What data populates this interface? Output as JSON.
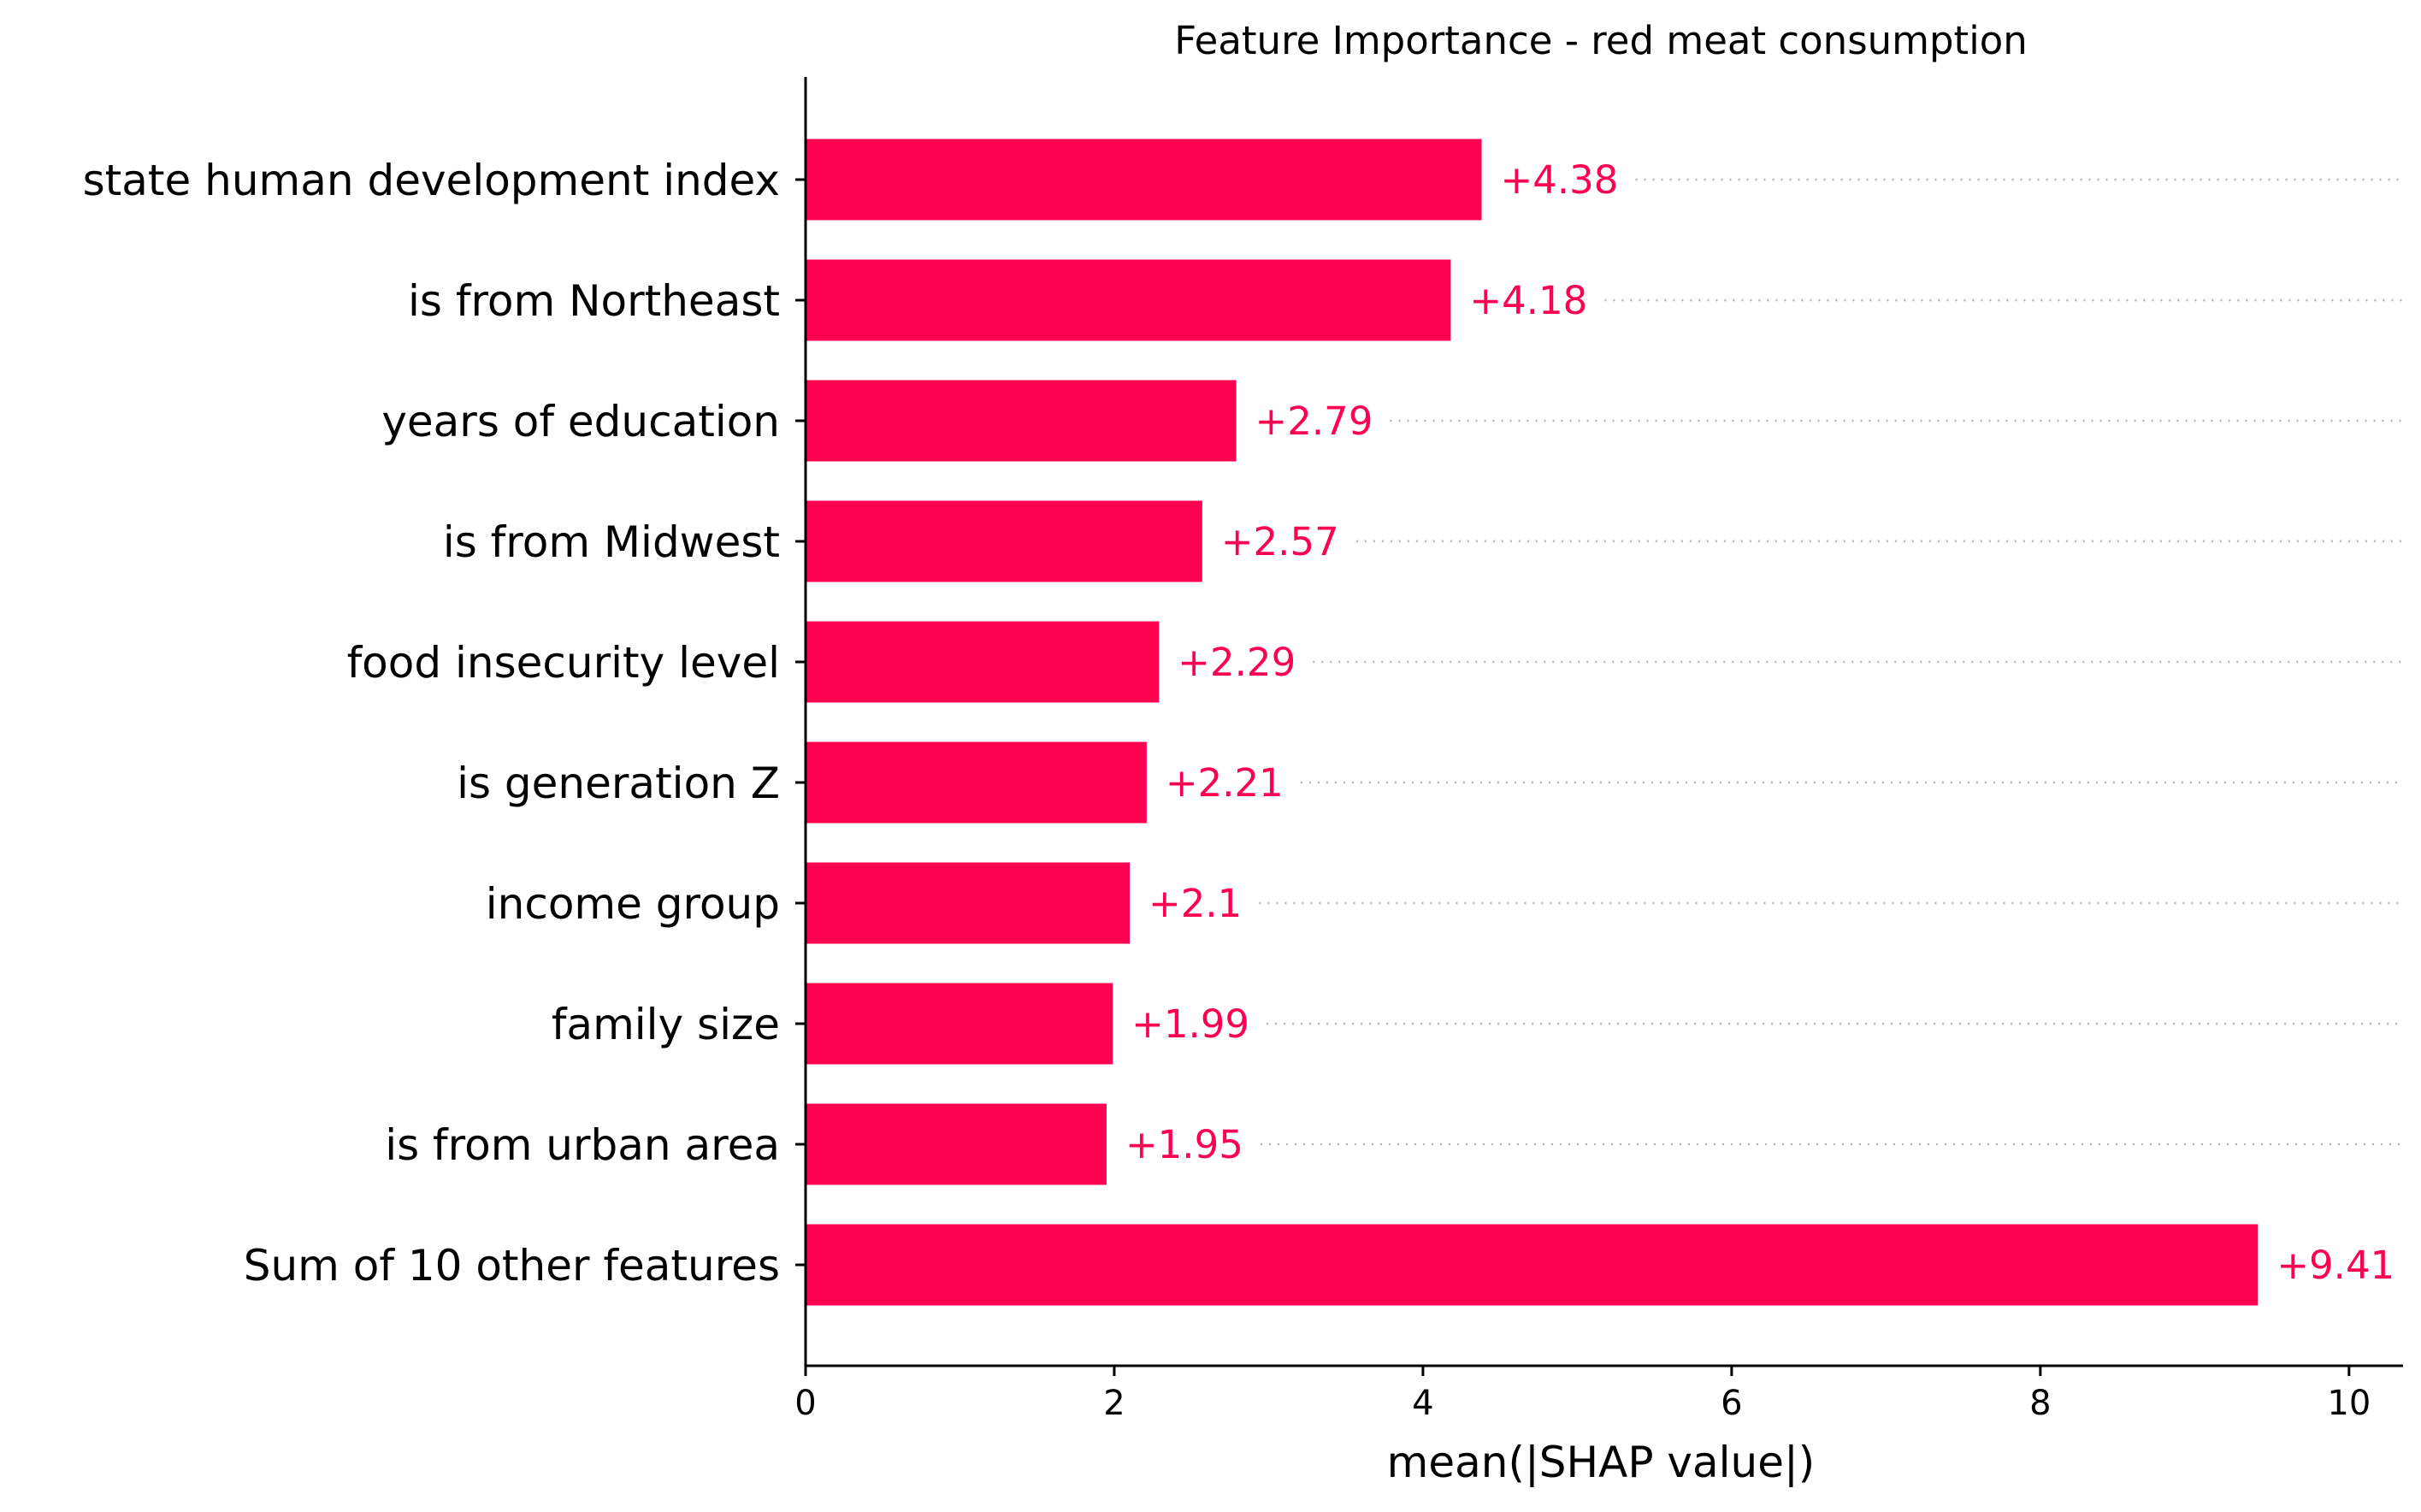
{
  "chart_data": {
    "type": "bar",
    "orientation": "horizontal",
    "title": "Feature Importance - red meat consumption",
    "xlabel": "mean(|SHAP value|)",
    "ylabel": "",
    "xlim": [
      0,
      10.35
    ],
    "xticks": [
      0,
      2,
      4,
      6,
      8,
      10
    ],
    "bar_color": "#ff0051",
    "label_color": "#ff0051",
    "grid": false,
    "guide_lines": "dotted",
    "categories": [
      "state human development index",
      "is from Northeast",
      "years of education",
      "is from Midwest",
      "food insecurity level",
      "is generation Z",
      "income group",
      "family size",
      "is from urban area",
      "Sum of 10 other features"
    ],
    "values": [
      4.38,
      4.18,
      2.79,
      2.57,
      2.29,
      2.21,
      2.1,
      1.99,
      1.95,
      9.41
    ],
    "value_labels": [
      "+4.38",
      "+4.18",
      "+2.79",
      "+2.57",
      "+2.29",
      "+2.21",
      "+2.1",
      "+1.99",
      "+1.95",
      "+9.41"
    ]
  }
}
